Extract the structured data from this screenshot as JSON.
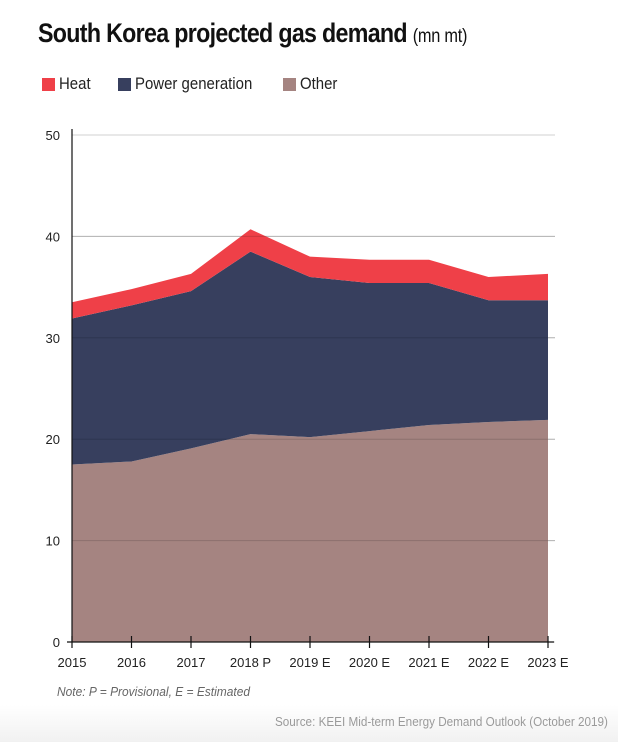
{
  "chart_data": {
    "type": "area",
    "stacked": true,
    "title": "South Korea projected gas demand",
    "unit": "(mn mt)",
    "xlabel": "",
    "ylabel": "",
    "ylim": [
      0,
      50
    ],
    "yticks": [
      0,
      10,
      20,
      30,
      40,
      50
    ],
    "grid": true,
    "legend_position": "top-left",
    "categories": [
      "2015",
      "2016",
      "2017",
      "2018 P",
      "2019 E",
      "2020 E",
      "2021 E",
      "2022 E",
      "2023 E"
    ],
    "series": [
      {
        "name": "Other",
        "color": "#a58481",
        "values": [
          17.5,
          17.8,
          19.1,
          20.5,
          20.2,
          20.8,
          21.4,
          21.7,
          21.9
        ]
      },
      {
        "name": "Power generation",
        "color": "#373f5e",
        "values": [
          14.4,
          15.4,
          15.5,
          18.0,
          15.8,
          14.6,
          14.0,
          12.0,
          11.8
        ]
      },
      {
        "name": "Heat",
        "color": "#ef4048",
        "values": [
          1.6,
          1.6,
          1.7,
          2.2,
          2.0,
          2.3,
          2.3,
          2.3,
          2.6
        ]
      }
    ],
    "legend": [
      {
        "name": "Heat",
        "color": "#ef4048"
      },
      {
        "name": "Power generation",
        "color": "#373f5e"
      },
      {
        "name": "Other",
        "color": "#a58481"
      }
    ],
    "note": "Note: P = Provisional, E = Estimated",
    "source": "Source: KEEI Mid-term Energy Demand Outlook (October 2019)"
  }
}
